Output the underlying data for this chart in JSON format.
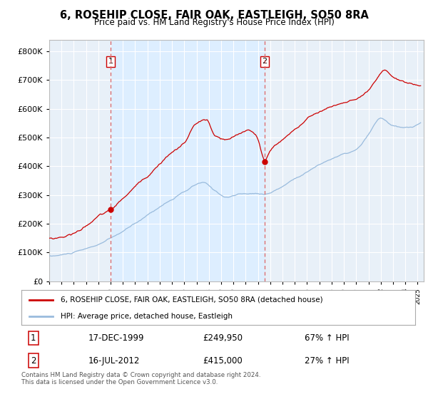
{
  "title": "6, ROSEHIP CLOSE, FAIR OAK, EASTLEIGH, SO50 8RA",
  "subtitle": "Price paid vs. HM Land Registry's House Price Index (HPI)",
  "background_color": "white",
  "plot_bg": "#e8f0f8",
  "sale1_date": "17-DEC-1999",
  "sale1_price": 249950,
  "sale2_date": "16-JUL-2012",
  "sale2_price": 415000,
  "legend_entry1": "6, ROSEHIP CLOSE, FAIR OAK, EASTLEIGH, SO50 8RA (detached house)",
  "legend_entry2": "HPI: Average price, detached house, Eastleigh",
  "footnote": "Contains HM Land Registry data © Crown copyright and database right 2024.\nThis data is licensed under the Open Government Licence v3.0.",
  "table_row1": [
    "1",
    "17-DEC-1999",
    "£249,950",
    "67% ↑ HPI"
  ],
  "table_row2": [
    "2",
    "16-JUL-2012",
    "£415,000",
    "27% ↑ HPI"
  ],
  "red_color": "#cc0000",
  "blue_color": "#99bbdd",
  "dashed_color": "#dd6666",
  "shade_color": "#ddeeff",
  "marker1_year": 2000.0,
  "marker1_y": 249950,
  "marker2_year": 2012.54,
  "marker2_y": 415000,
  "ylim": [
    0,
    840000
  ],
  "yticks": [
    0,
    100000,
    200000,
    300000,
    400000,
    500000,
    600000,
    700000,
    800000
  ],
  "xlim_start": 1995.0,
  "xlim_end": 2025.5
}
